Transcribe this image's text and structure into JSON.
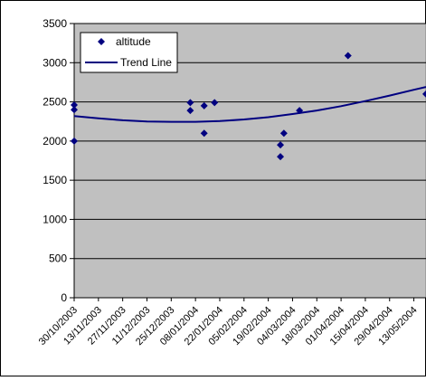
{
  "chart_data": {
    "type": "scatter",
    "title": "",
    "xlabel": "",
    "ylabel": "",
    "x_range": [
      "30/10/2003",
      "20/05/2004"
    ],
    "ylim": [
      0,
      3500
    ],
    "y_ticks": [
      0,
      500,
      1000,
      1500,
      2000,
      2500,
      3000,
      3500
    ],
    "x_tick_labels": [
      "30/10/2003",
      "13/11/2003",
      "27/11/2003",
      "11/12/2003",
      "25/12/2003",
      "08/01/2004",
      "22/01/2004",
      "05/02/2004",
      "19/02/2004",
      "04/03/2004",
      "18/03/2004",
      "01/04/2004",
      "15/04/2004",
      "29/04/2004",
      "13/05/2004"
    ],
    "grid": "horizontal",
    "plot_background": "#c0c0c0",
    "legend_position": "top-left",
    "series": [
      {
        "name": "altitude",
        "kind": "points",
        "marker": "diamond",
        "color": "#000080",
        "points": [
          {
            "x": "30/10/2003",
            "y": 2460
          },
          {
            "x": "30/10/2003",
            "y": 2400
          },
          {
            "x": "30/10/2003",
            "y": 2000
          },
          {
            "x": "05/01/2004",
            "y": 2490
          },
          {
            "x": "05/01/2004",
            "y": 2390
          },
          {
            "x": "13/01/2004",
            "y": 2450
          },
          {
            "x": "13/01/2004",
            "y": 2100
          },
          {
            "x": "19/01/2004",
            "y": 2490
          },
          {
            "x": "26/02/2004",
            "y": 1950
          },
          {
            "x": "26/02/2004",
            "y": 1800
          },
          {
            "x": "28/02/2004",
            "y": 2100
          },
          {
            "x": "08/03/2004",
            "y": 2390
          },
          {
            "x": "05/04/2004",
            "y": 3090
          },
          {
            "x": "20/05/2004",
            "y": 2600
          }
        ]
      },
      {
        "name": "Trend Line",
        "kind": "line",
        "color": "#000080",
        "points": [
          {
            "x": "30/10/2003",
            "y": 2320
          },
          {
            "x": "13/11/2003",
            "y": 2290
          },
          {
            "x": "27/11/2003",
            "y": 2265
          },
          {
            "x": "11/12/2003",
            "y": 2250
          },
          {
            "x": "25/12/2003",
            "y": 2245
          },
          {
            "x": "08/01/2004",
            "y": 2245
          },
          {
            "x": "22/01/2004",
            "y": 2255
          },
          {
            "x": "05/02/2004",
            "y": 2275
          },
          {
            "x": "19/02/2004",
            "y": 2305
          },
          {
            "x": "04/03/2004",
            "y": 2345
          },
          {
            "x": "18/03/2004",
            "y": 2390
          },
          {
            "x": "01/04/2004",
            "y": 2445
          },
          {
            "x": "15/04/2004",
            "y": 2510
          },
          {
            "x": "29/04/2004",
            "y": 2580
          },
          {
            "x": "13/05/2004",
            "y": 2655
          },
          {
            "x": "20/05/2004",
            "y": 2690
          }
        ]
      }
    ]
  }
}
